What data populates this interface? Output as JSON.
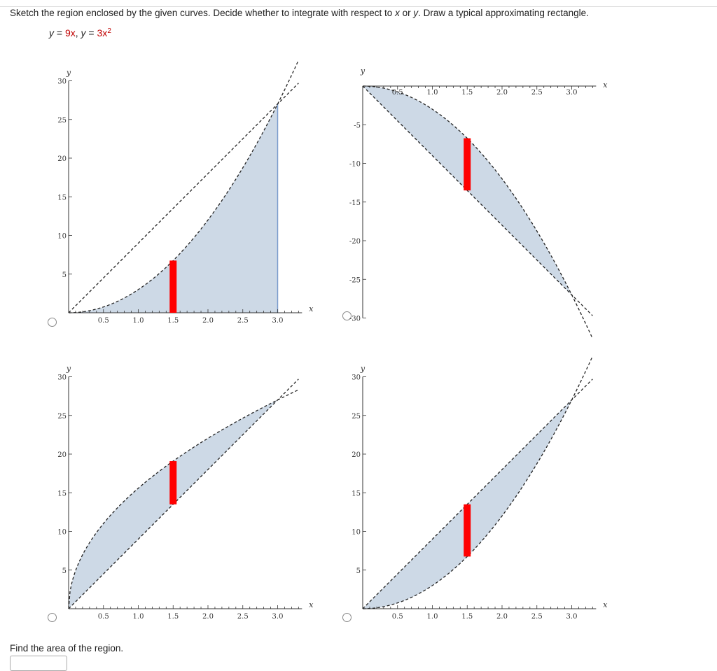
{
  "question": {
    "prompt_before": "Sketch the region enclosed by the given curves. Decide whether to integrate with respect to ",
    "var_x": "x",
    "prompt_mid": " or ",
    "var_y": "y",
    "prompt_after": ". Draw a typical approximating rectangle."
  },
  "equation": {
    "y1_lhs": "y",
    "y1_eq": " = ",
    "y1_rhs": "9x",
    "sep": ", ",
    "y2_lhs": "y",
    "y2_eq": " = ",
    "y2_rhs_base": "3x",
    "y2_rhs_exp": "2"
  },
  "options": [
    {
      "chart_data": {
        "type": "area",
        "curves": [
          "y = 9x",
          "y = 3x^2"
        ],
        "shaded": "under y = 3x^2 from x = 0 to x = 3",
        "rectangle": {
          "x": 1.5,
          "y_from": 0,
          "y_to": 6.75
        },
        "xlim": [
          0,
          3.3
        ],
        "ylim": [
          0,
          30
        ],
        "xticks": [
          "0.5",
          "1.0",
          "1.5",
          "2.0",
          "2.5",
          "3.0"
        ],
        "yticks": [
          "5",
          "10",
          "15",
          "20",
          "25",
          "30"
        ],
        "xlabel": "x",
        "ylabel": "y"
      }
    },
    {
      "chart_data": {
        "type": "area",
        "curves": [
          "y = -9x",
          "y = -3x^2"
        ],
        "shaded": "between y = -3x^2 and y = -9x from x = 0 to x = 3",
        "rectangle": {
          "x": 1.5,
          "y_from": -13.5,
          "y_to": -6.75
        },
        "xlim": [
          0,
          3.3
        ],
        "ylim": [
          -30,
          0
        ],
        "xticks": [
          "0.5",
          "1.0",
          "1.5",
          "2.0",
          "2.5",
          "3.0"
        ],
        "yticks": [
          "-5",
          "-10",
          "-15",
          "-20",
          "-25",
          "-30"
        ],
        "xlabel": "x",
        "ylabel": "y"
      }
    },
    {
      "chart_data": {
        "type": "area",
        "curves": [
          "y = 9x",
          "y = sqrt(243x)"
        ],
        "shaded": "between y = 9x and y = sqrt(243x) from x = 0 to x = 3",
        "rectangle": {
          "x": 1.5,
          "y_from": 13.5,
          "y_to": 19.09
        },
        "xlim": [
          0,
          3.3
        ],
        "ylim": [
          0,
          30
        ],
        "xticks": [
          "0.5",
          "1.0",
          "1.5",
          "2.0",
          "2.5",
          "3.0"
        ],
        "yticks": [
          "5",
          "10",
          "15",
          "20",
          "25",
          "30"
        ],
        "xlabel": "x",
        "ylabel": "y"
      }
    },
    {
      "chart_data": {
        "type": "area",
        "curves": [
          "y = 9x",
          "y = 3x^2"
        ],
        "shaded": "between y = 3x^2 and y = 9x from x = 0 to x = 3",
        "rectangle": {
          "x": 1.5,
          "y_from": 6.75,
          "y_to": 13.5
        },
        "xlim": [
          0,
          3.3
        ],
        "ylim": [
          0,
          30
        ],
        "xticks": [
          "0.5",
          "1.0",
          "1.5",
          "2.0",
          "2.5",
          "3.0"
        ],
        "yticks": [
          "5",
          "10",
          "15",
          "20",
          "25",
          "30"
        ],
        "xlabel": "x",
        "ylabel": "y"
      }
    }
  ],
  "colors": {
    "fill": "#cdd9e6",
    "fill_edge": "#7b9ccc",
    "rect": "#ff0000",
    "curve": "#222222",
    "equation_red": "#c00000"
  },
  "find": {
    "label": "Find the area of the region."
  }
}
